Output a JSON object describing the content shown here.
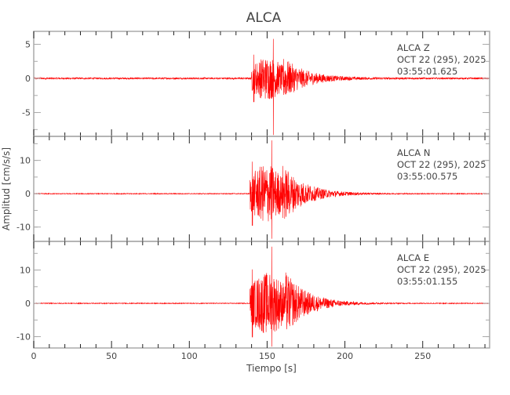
{
  "chart_data": {
    "type": "line",
    "title": "ALCA",
    "xlabel": "Tiempo [s]",
    "ylabel": "Amplitud [cm/s/s]",
    "xlim": [
      0,
      293
    ],
    "xticks": [
      0,
      50,
      100,
      150,
      200,
      250
    ],
    "line_color": "#ff0000",
    "axis_color": "#aaaaaa",
    "panels": [
      {
        "station": "ALCA",
        "component": "Z",
        "date": "OCT 22 (295), 2025",
        "time": "03:55:01.625",
        "ylim": [
          -8.5,
          6.9
        ],
        "yticks": [
          5,
          0,
          -5
        ],
        "yticklabels": [
          "5",
          "0",
          "-5"
        ],
        "onset_s": 140,
        "peak_pos": 5.8,
        "peak_neg": -8.3,
        "strong_motion_s": [
          140,
          160
        ]
      },
      {
        "station": "ALCA",
        "component": "N",
        "date": "OCT 22 (295), 2025",
        "time": "03:55:00.575",
        "ylim": [
          -14.3,
          17.2
        ],
        "yticks": [
          10,
          0,
          -10
        ],
        "yticklabels": [
          "10",
          "0",
          "-10"
        ],
        "onset_s": 139,
        "peak_pos": 16,
        "peak_neg": -13.5,
        "strong_motion_s": [
          139,
          160
        ]
      },
      {
        "station": "ALCA",
        "component": "E",
        "date": "OCT 22 (295), 2025",
        "time": "03:55:01.155",
        "ylim": [
          -13.4,
          18.6
        ],
        "yticks": [
          10,
          0,
          -10
        ],
        "yticklabels": [
          "10",
          "0",
          "-10"
        ],
        "onset_s": 139,
        "peak_pos": 17,
        "peak_neg": -13,
        "strong_motion_s": [
          139,
          162
        ]
      }
    ]
  }
}
